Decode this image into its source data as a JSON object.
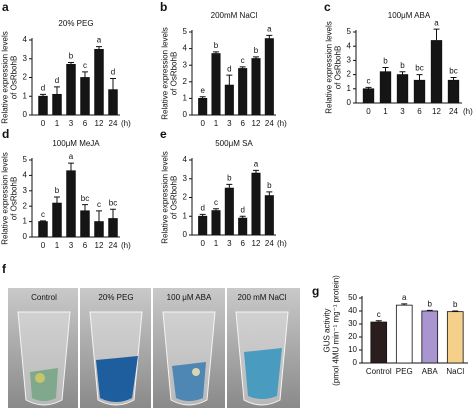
{
  "chart_data": [
    {
      "type": "bar",
      "panel": "a",
      "title": "20% PEG",
      "ylabel": [
        "Relative expression levels",
        "of OsRbohB"
      ],
      "xlabel": "(h)",
      "categories": [
        "0",
        "1",
        "3",
        "6",
        "12",
        "24"
      ],
      "values": [
        1.0,
        1.1,
        2.7,
        2.0,
        3.5,
        1.35
      ],
      "errors": [
        0.1,
        0.4,
        0.1,
        0.3,
        0.15,
        0.6
      ],
      "annotations": [
        "d",
        "d",
        "b",
        "c",
        "a",
        "d"
      ],
      "color": "#151515",
      "ylim": [
        0,
        4
      ],
      "yticks": [
        0,
        1,
        2,
        3,
        4
      ]
    },
    {
      "type": "bar",
      "panel": "b",
      "title": "200mM NaCl",
      "ylabel": [
        "Relative expression levels",
        "of OsRbohB"
      ],
      "xlabel": "(h)",
      "categories": [
        "0",
        "1",
        "3",
        "6",
        "12",
        "24"
      ],
      "values": [
        1.0,
        3.7,
        1.8,
        2.8,
        3.4,
        4.6
      ],
      "errors": [
        0.1,
        0.1,
        0.6,
        0.1,
        0.1,
        0.2
      ],
      "annotations": [
        "e",
        "b",
        "d",
        "c",
        "b",
        "a"
      ],
      "color": "#151515",
      "ylim": [
        0,
        5
      ],
      "yticks": [
        0,
        1,
        2,
        3,
        4,
        5
      ]
    },
    {
      "type": "bar",
      "panel": "c",
      "title": "100μM ABA",
      "ylabel": [
        "Relative expression levels",
        "of OsRbohB"
      ],
      "xlabel": "(h)",
      "categories": [
        "0",
        "1",
        "3",
        "6",
        "12",
        "24"
      ],
      "values": [
        1.0,
        2.2,
        2.0,
        1.6,
        4.4,
        1.6
      ],
      "errors": [
        0.1,
        0.3,
        0.2,
        0.4,
        0.8,
        0.2
      ],
      "annotations": [
        "c",
        "b",
        "b",
        "bc",
        "a",
        "bc"
      ],
      "color": "#151515",
      "ylim": [
        0,
        5
      ],
      "yticks": [
        0,
        1,
        2,
        3,
        4,
        5
      ]
    },
    {
      "type": "bar",
      "panel": "d",
      "title": "100μM MeJA",
      "ylabel": [
        "Relative expression levels",
        "of OsRbohB"
      ],
      "xlabel": "(h)",
      "categories": [
        "0",
        "1",
        "3",
        "6",
        "12",
        "24"
      ],
      "values": [
        1.0,
        2.2,
        4.3,
        1.7,
        1.0,
        1.2
      ],
      "errors": [
        0.05,
        0.4,
        0.5,
        0.4,
        0.7,
        0.6
      ],
      "annotations": [
        "c",
        "b",
        "a",
        "bc",
        "c",
        "bc"
      ],
      "color": "#151515",
      "ylim": [
        0,
        5
      ],
      "yticks": [
        0,
        1,
        2,
        3,
        4,
        5
      ]
    },
    {
      "type": "bar",
      "panel": "e",
      "title": "500μM SA",
      "ylabel": [
        "Relative expression levels",
        "of OsRbohB"
      ],
      "xlabel": "(h)",
      "categories": [
        "0",
        "1",
        "3",
        "6",
        "12",
        "24"
      ],
      "values": [
        1.0,
        1.3,
        2.5,
        0.9,
        3.3,
        2.1
      ],
      "errors": [
        0.1,
        0.1,
        0.2,
        0.1,
        0.15,
        0.2
      ],
      "annotations": [
        "d",
        "c",
        "b",
        "d",
        "a",
        "b"
      ],
      "color": "#151515",
      "ylim": [
        0,
        4
      ],
      "yticks": [
        0,
        1,
        2,
        3,
        4
      ]
    },
    {
      "type": "bar",
      "panel": "g",
      "ylabel": [
        "GUS activity",
        "(pmol 4MU min⁻¹ mg⁻¹ protein)"
      ],
      "categories": [
        "Control",
        "PEG",
        "ABA",
        "NaCl"
      ],
      "values": [
        31.5,
        44.5,
        40,
        39.5
      ],
      "errors": [
        1,
        1,
        0.5,
        0.5
      ],
      "annotations": [
        "c",
        "a",
        "b",
        "b"
      ],
      "colors": [
        "#2b1d1d",
        "#ffffff",
        "#a996d0",
        "#f5d08a"
      ],
      "ylim": [
        0,
        50
      ],
      "yticks": [
        0,
        10,
        20,
        30,
        40,
        50
      ]
    }
  ],
  "photo": {
    "panel": "f",
    "labels": [
      "Control",
      "20% PEG",
      "100 μM ABA",
      "200 mM NaCl"
    ]
  }
}
